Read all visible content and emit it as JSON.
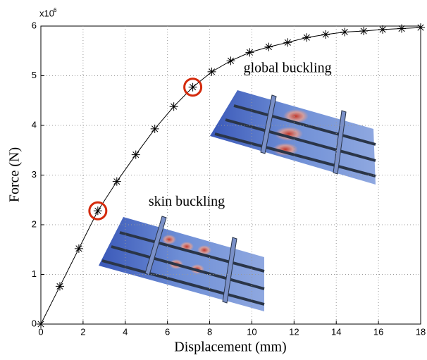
{
  "chart_data": {
    "type": "line",
    "xlabel": "Displacement (mm)",
    "ylabel": "Force  (N)",
    "y_multiplier": "x10",
    "y_multiplier_exponent": "6",
    "x": [
      0,
      0.9,
      1.8,
      2.7,
      3.6,
      4.5,
      5.4,
      6.3,
      7.2,
      8.1,
      9.0,
      9.9,
      10.8,
      11.7,
      12.6,
      13.5,
      14.4,
      15.3,
      16.2,
      17.1,
      18
    ],
    "values": [
      0,
      0.76,
      1.52,
      2.28,
      2.87,
      3.41,
      3.93,
      4.38,
      4.77,
      5.08,
      5.3,
      5.47,
      5.58,
      5.67,
      5.77,
      5.83,
      5.88,
      5.9,
      5.93,
      5.95,
      5.97
    ],
    "color": "#000000",
    "highlight_color": "#d42a0c",
    "annotations": [
      {
        "text": "skin buckling",
        "point": 3
      },
      {
        "text": "global buckling",
        "point": 8
      }
    ],
    "xlim": [
      0,
      18
    ],
    "xticks": [
      0,
      2,
      4,
      6,
      8,
      10,
      12,
      14,
      16,
      18
    ],
    "ylim": [
      0,
      6
    ],
    "yticks": [
      0,
      1,
      2,
      3,
      4,
      5,
      6
    ],
    "grid": true
  }
}
